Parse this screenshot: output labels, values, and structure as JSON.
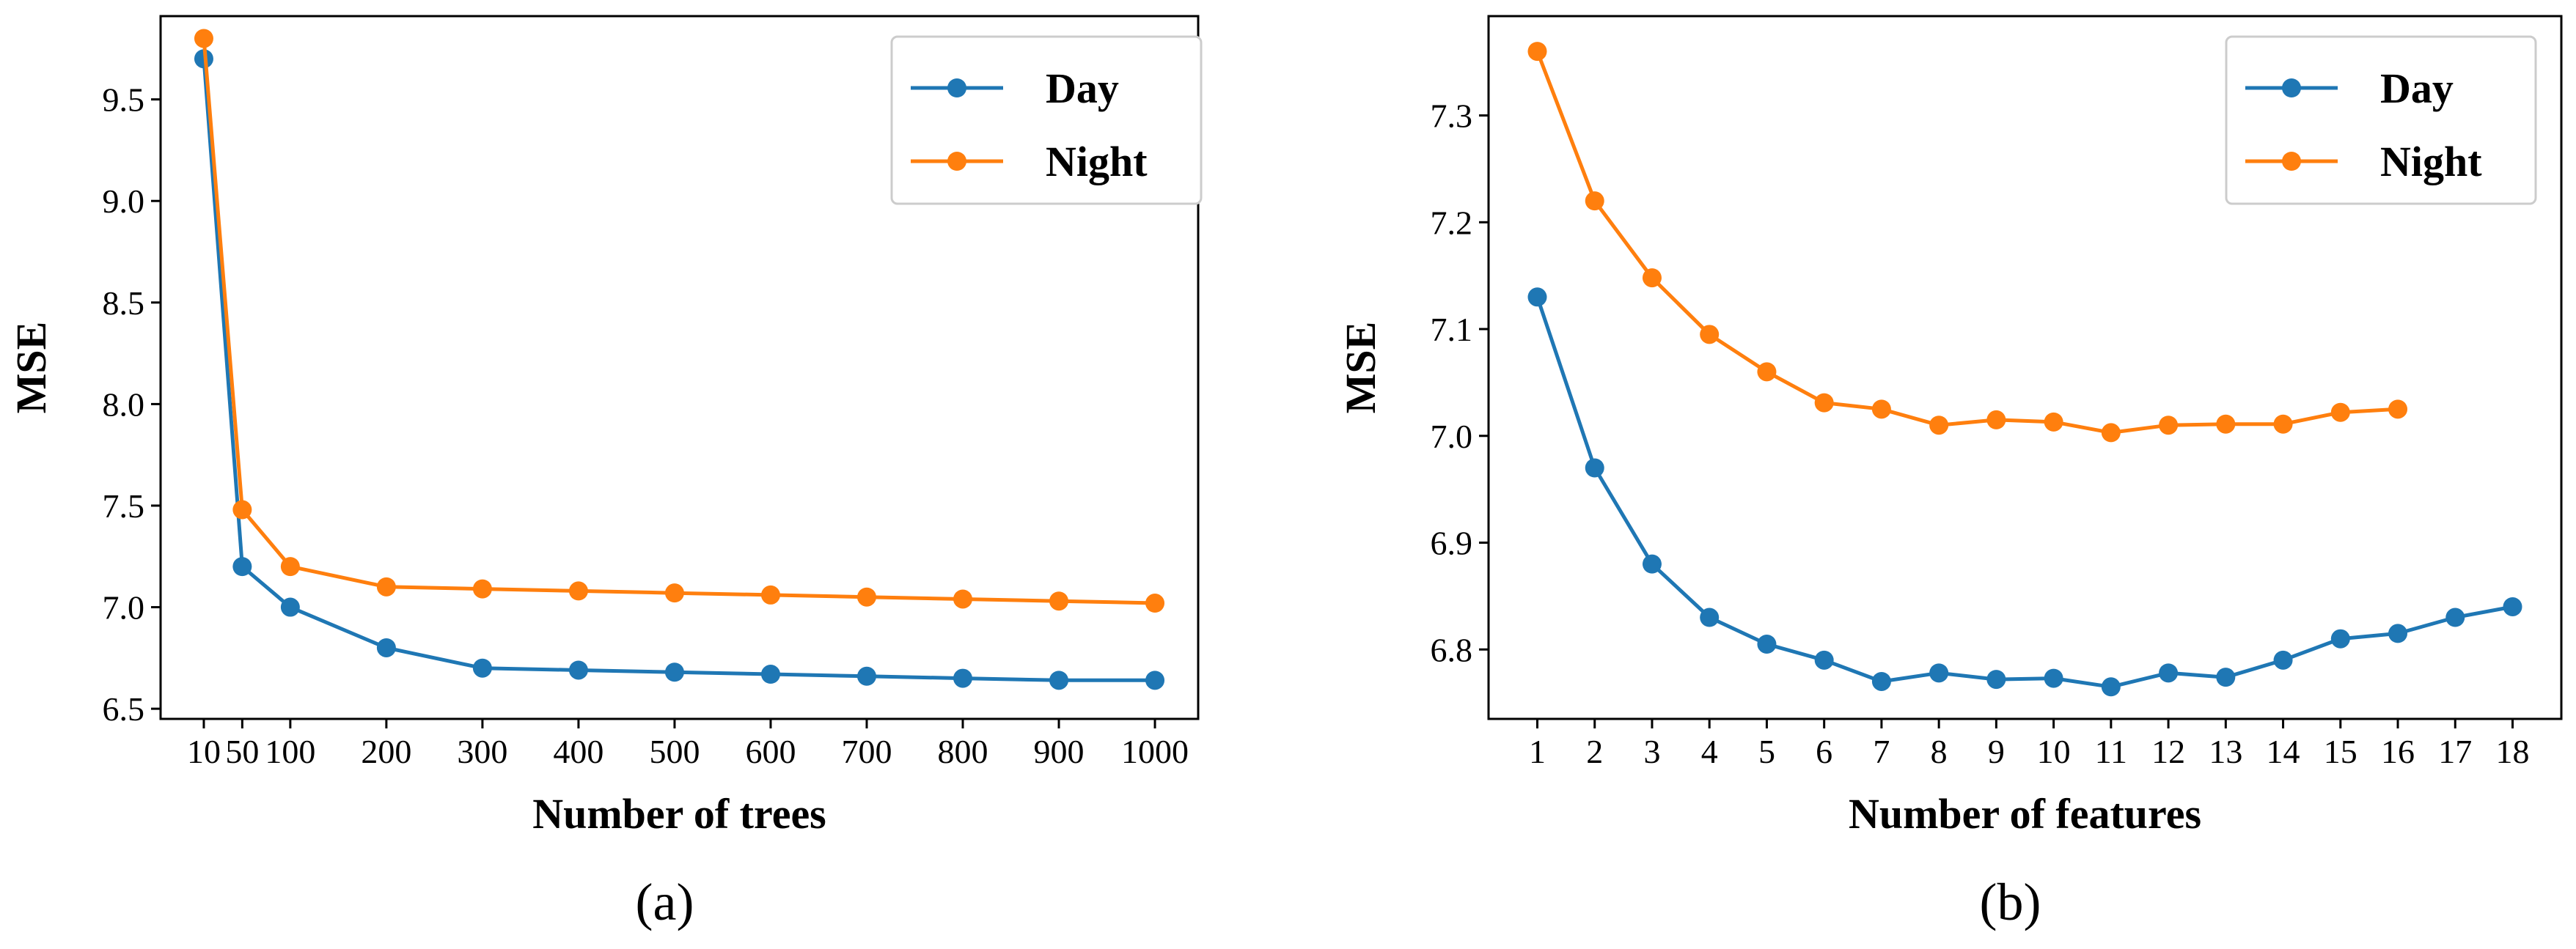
{
  "chart_data": [
    {
      "type": "line",
      "id": "a",
      "caption": "(a)",
      "xlabel": "Number of trees",
      "ylabel": "MSE",
      "x": [
        10,
        50,
        100,
        200,
        300,
        400,
        500,
        600,
        700,
        800,
        900,
        1000
      ],
      "xticks": [
        10,
        50,
        100,
        200,
        300,
        400,
        500,
        600,
        700,
        800,
        900,
        1000
      ],
      "xtick_labels": [
        "10",
        "50",
        "100",
        "200",
        "300",
        "400",
        "500",
        "600",
        "700",
        "800",
        "900",
        "1000"
      ],
      "yticks": [
        6.5,
        7.0,
        7.5,
        8.0,
        8.5,
        9.0,
        9.5
      ],
      "ytick_labels": [
        "6.5",
        "7.0",
        "7.5",
        "8.0",
        "8.5",
        "9.0",
        "9.5"
      ],
      "xlim": [
        -35,
        1045
      ],
      "ylim": [
        6.45,
        9.91
      ],
      "legend_position": "top-right",
      "series": [
        {
          "name": "Day",
          "color": "#1f77b4",
          "values": [
            9.7,
            7.2,
            7.0,
            6.8,
            6.7,
            6.69,
            6.68,
            6.67,
            6.66,
            6.65,
            6.64,
            6.64
          ]
        },
        {
          "name": "Night",
          "color": "#ff7f0e",
          "values": [
            9.8,
            7.48,
            7.2,
            7.1,
            7.09,
            7.08,
            7.07,
            7.06,
            7.05,
            7.04,
            7.03,
            7.02
          ]
        }
      ]
    },
    {
      "type": "line",
      "id": "b",
      "caption": "(b)",
      "xlabel": "Number of features",
      "ylabel": "MSE",
      "xticks": [
        1,
        2,
        3,
        4,
        5,
        6,
        7,
        8,
        9,
        10,
        11,
        12,
        13,
        14,
        15,
        16,
        17,
        18
      ],
      "xtick_labels": [
        "1",
        "2",
        "3",
        "4",
        "5",
        "6",
        "7",
        "8",
        "9",
        "10",
        "11",
        "12",
        "13",
        "14",
        "15",
        "16",
        "17",
        "18"
      ],
      "yticks": [
        6.8,
        6.9,
        7.0,
        7.1,
        7.2,
        7.3
      ],
      "ytick_labels": [
        "6.8",
        "6.9",
        "7.0",
        "7.1",
        "7.2",
        "7.3"
      ],
      "xlim": [
        0.15,
        18.85
      ],
      "ylim": [
        6.735,
        7.393
      ],
      "legend_position": "top-right",
      "series": [
        {
          "name": "Day",
          "color": "#1f77b4",
          "x": [
            1,
            2,
            3,
            4,
            5,
            6,
            7,
            8,
            9,
            10,
            11,
            12,
            13,
            14,
            15,
            16,
            17,
            18
          ],
          "values": [
            7.13,
            6.97,
            6.88,
            6.83,
            6.805,
            6.79,
            6.77,
            6.778,
            6.772,
            6.773,
            6.765,
            6.778,
            6.774,
            6.79,
            6.81,
            6.815,
            6.83,
            6.84
          ]
        },
        {
          "name": "Night",
          "color": "#ff7f0e",
          "x": [
            1,
            2,
            3,
            4,
            5,
            6,
            7,
            8,
            9,
            10,
            11,
            12,
            13,
            14,
            15,
            16
          ],
          "values": [
            7.36,
            7.22,
            7.148,
            7.095,
            7.06,
            7.031,
            7.025,
            7.01,
            7.015,
            7.013,
            7.003,
            7.01,
            7.011,
            7.011,
            7.022,
            7.025
          ]
        }
      ]
    }
  ]
}
